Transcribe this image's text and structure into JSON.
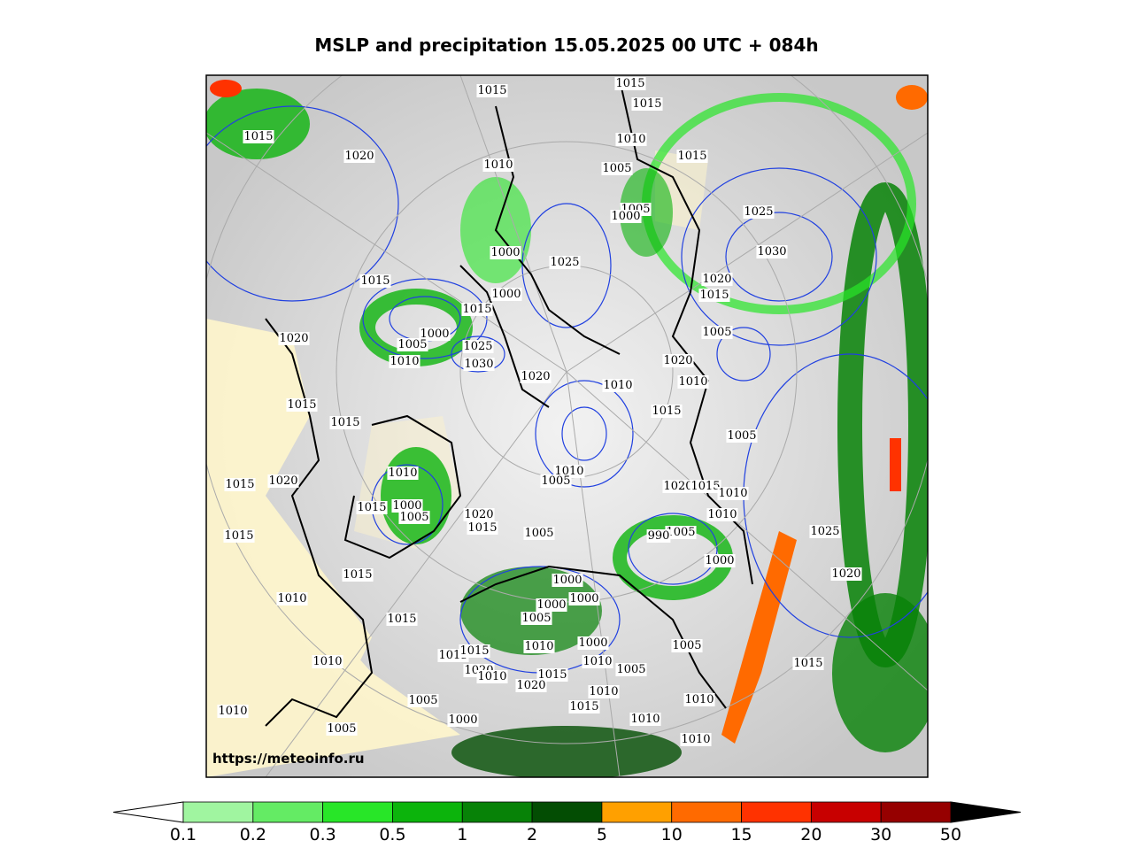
{
  "title": "MSLP and precipitation 15.05.2025 00 UTC + 084h",
  "watermark": "https://meteoinfo.ru",
  "isobar_labels": [
    1015,
    1020,
    1015,
    1015,
    1015,
    1010,
    1010,
    1005,
    1015,
    1005,
    1000,
    1025,
    1030,
    1000,
    1025,
    1020,
    1015,
    1015,
    1000,
    1015,
    1005,
    1020,
    1000,
    1005,
    1010,
    1025,
    1030,
    1020,
    1010,
    1020,
    1010,
    1015,
    1015,
    1015,
    1005,
    1010,
    1010,
    1005,
    1015,
    1020,
    1020,
    1015,
    1010,
    1015,
    1000,
    1005,
    1020,
    1015,
    1010,
    1015,
    1005,
    1005,
    990,
    1025,
    1000,
    1015,
    1020,
    1000,
    1000,
    1000,
    1010,
    1015,
    1005,
    1000,
    1010,
    1005,
    1015,
    1015,
    1010,
    1010,
    1005,
    1015,
    1020,
    1010,
    1015,
    1020,
    1010,
    1005,
    1010,
    1010,
    1015,
    1000,
    1010,
    1005,
    1010
  ],
  "colorbar": {
    "levels": [
      0.1,
      0.2,
      0.3,
      0.5,
      1,
      2,
      5,
      10,
      15,
      20,
      30,
      50
    ],
    "colors": [
      "#a0f5a0",
      "#64eb64",
      "#28e628",
      "#0cb40c",
      "#078207",
      "#034d03",
      "#ffa000",
      "#ff6a00",
      "#ff3200",
      "#c80000",
      "#960000"
    ],
    "under_color": "#ffffff",
    "over_color": "#000000"
  }
}
